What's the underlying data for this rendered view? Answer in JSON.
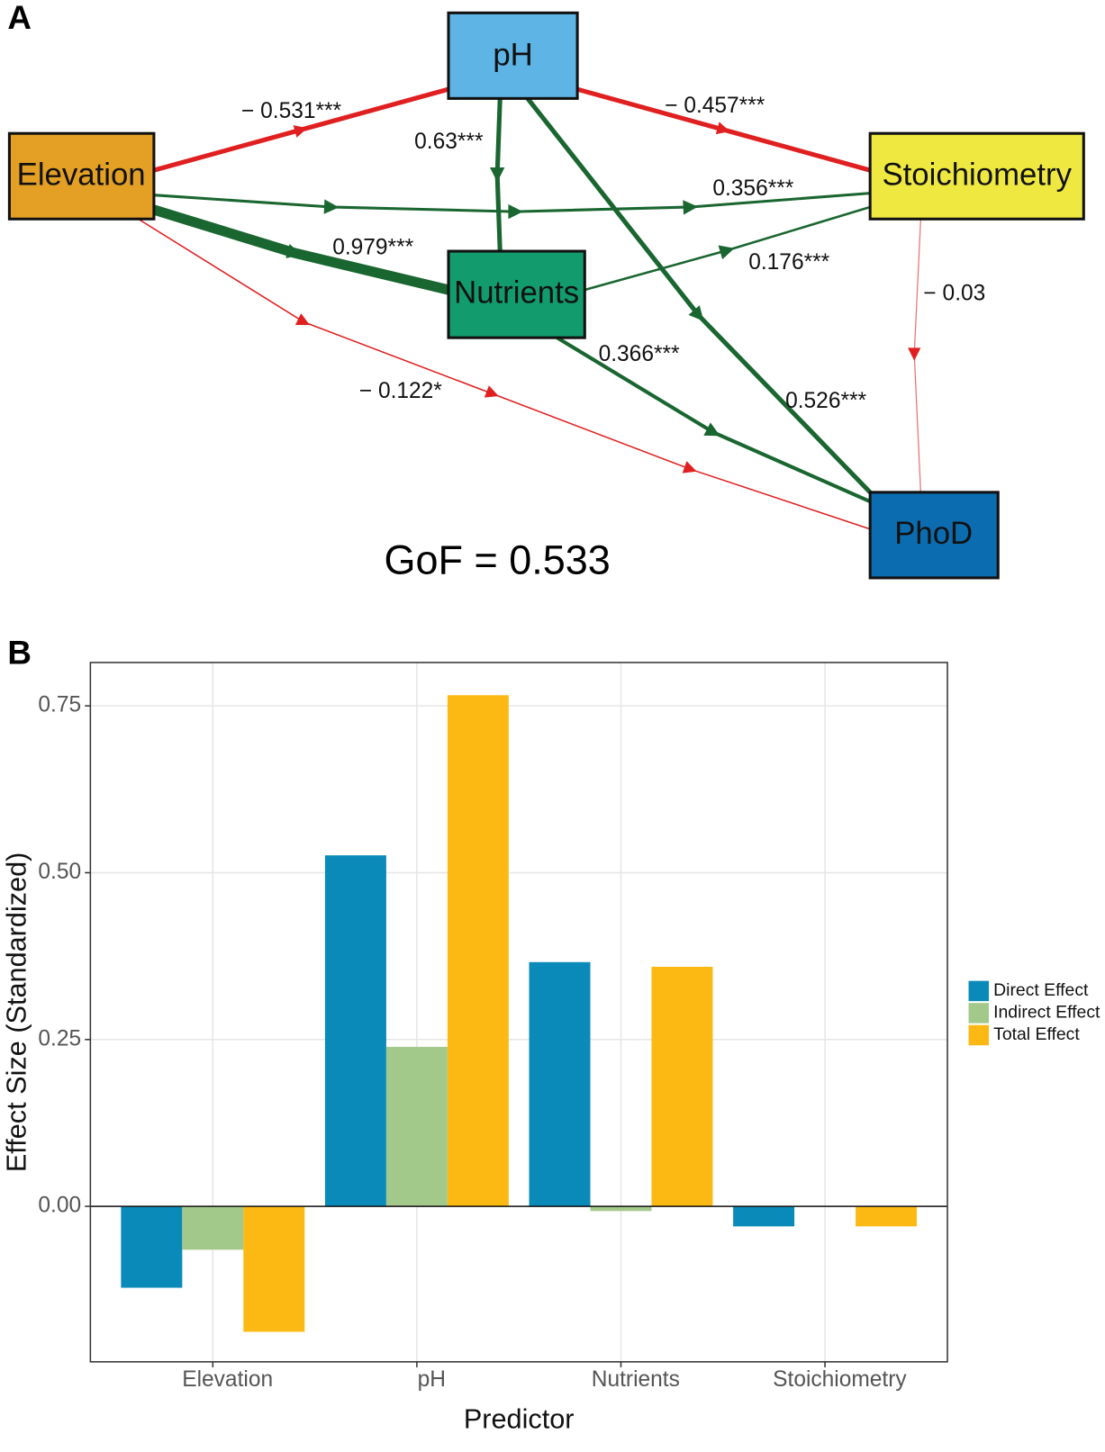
{
  "panel_labels": [
    "A",
    "B"
  ],
  "diagram": {
    "nodes": [
      {
        "label": "Elevation"
      },
      {
        "label": "pH"
      },
      {
        "label": "Stoichiometry"
      },
      {
        "label": "Nutrients"
      },
      {
        "label": "PhoD"
      }
    ],
    "edges": [
      {
        "label": "− 0.531***"
      },
      {
        "label": "− 0.457***"
      },
      {
        "label": "0.63***"
      },
      {
        "label": "0.526***"
      },
      {
        "label": "0.356***"
      },
      {
        "label": "0.979***"
      },
      {
        "label": "0.176***"
      },
      {
        "label": "0.366***"
      },
      {
        "label": "− 0.122*"
      },
      {
        "label": "− 0.03"
      }
    ],
    "gof": "GoF = 0.533"
  },
  "chart_data": {
    "type": "bar",
    "xlabel": "Predictor",
    "ylabel": "Effect Size (Standardized)",
    "categories": [
      "Elevation",
      "pH",
      "Nutrients",
      "Stoichiometry"
    ],
    "series": [
      {
        "name": "Direct Effect",
        "color": "#0a8ab8",
        "values": [
          -0.122,
          0.526,
          0.366,
          -0.03
        ]
      },
      {
        "name": "Indirect Effect",
        "color": "#a3c98a",
        "values": [
          -0.065,
          0.239,
          -0.007,
          0
        ]
      },
      {
        "name": "Total Effect",
        "color": "#fdb913",
        "values": [
          -0.188,
          0.766,
          0.359,
          -0.03
        ]
      }
    ],
    "ylim": [
      -0.233,
      0.815
    ],
    "yticks": [
      {
        "value": 0,
        "label": "0.00"
      },
      {
        "value": 0.25,
        "label": "0.25"
      },
      {
        "value": 0.5,
        "label": "0.50"
      },
      {
        "value": 0.75,
        "label": "0.75"
      }
    ],
    "grid": true,
    "legend": "right"
  }
}
